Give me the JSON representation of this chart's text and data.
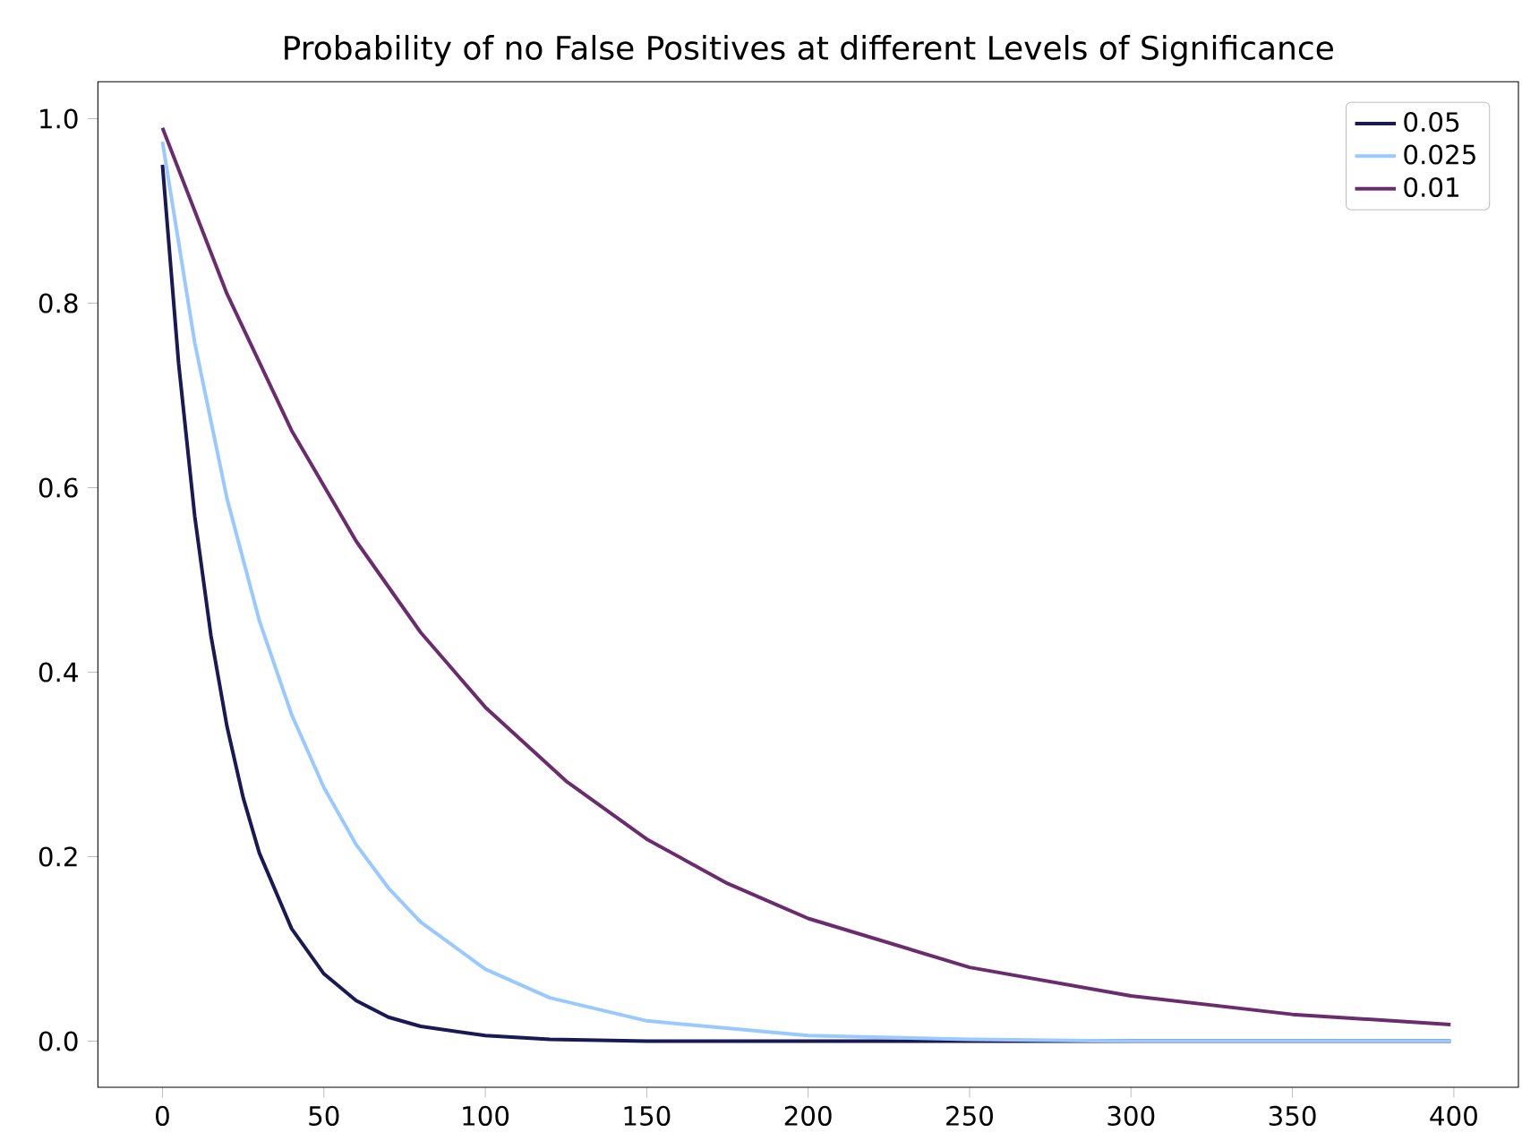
{
  "chart_data": {
    "type": "line",
    "title": "Probability of no False Positives at different Levels of Significance",
    "xlim": [
      -20,
      420
    ],
    "ylim": [
      -0.05,
      1.04
    ],
    "xticks": [
      0,
      50,
      100,
      150,
      200,
      250,
      300,
      350,
      400
    ],
    "yticks": [
      {
        "value": 0,
        "label": "0.0"
      },
      {
        "value": 0.2,
        "label": "0.2"
      },
      {
        "value": 0.4,
        "label": "0.4"
      },
      {
        "value": 0.6,
        "label": "0.6"
      },
      {
        "value": 0.8,
        "label": "0.8"
      },
      {
        "value": 1.0,
        "label": "1.0"
      }
    ],
    "legend": "top right",
    "grid": false,
    "marker": "none",
    "line_style": "solid",
    "series": [
      {
        "name": "0.05",
        "color": "#191955",
        "x": [
          0,
          5,
          10,
          15,
          20,
          25,
          30,
          40,
          50,
          60,
          70,
          80,
          100,
          120,
          150,
          200,
          250,
          300,
          350,
          399
        ],
        "values": [
          0.95,
          0.735,
          0.569,
          0.44,
          0.341,
          0.264,
          0.204,
          0.122,
          0.073,
          0.044,
          0.026,
          0.016,
          0.006,
          0.002,
          0.0,
          0.0,
          0.0,
          0.0,
          0.0,
          0.0
        ]
      },
      {
        "name": "0.025",
        "color": "#99c9ff",
        "x": [
          0,
          10,
          20,
          30,
          40,
          50,
          60,
          70,
          80,
          100,
          120,
          150,
          200,
          250,
          300,
          350,
          399
        ],
        "values": [
          0.975,
          0.757,
          0.588,
          0.456,
          0.354,
          0.275,
          0.213,
          0.166,
          0.129,
          0.078,
          0.047,
          0.022,
          0.006,
          0.002,
          0.0,
          0.0,
          0.0
        ]
      },
      {
        "name": "0.01",
        "color": "#6b2c6e",
        "x": [
          0,
          20,
          40,
          60,
          80,
          100,
          125,
          150,
          175,
          200,
          250,
          300,
          350,
          399
        ],
        "values": [
          0.99,
          0.81,
          0.662,
          0.542,
          0.443,
          0.362,
          0.282,
          0.219,
          0.171,
          0.133,
          0.08,
          0.049,
          0.029,
          0.018
        ]
      }
    ]
  }
}
